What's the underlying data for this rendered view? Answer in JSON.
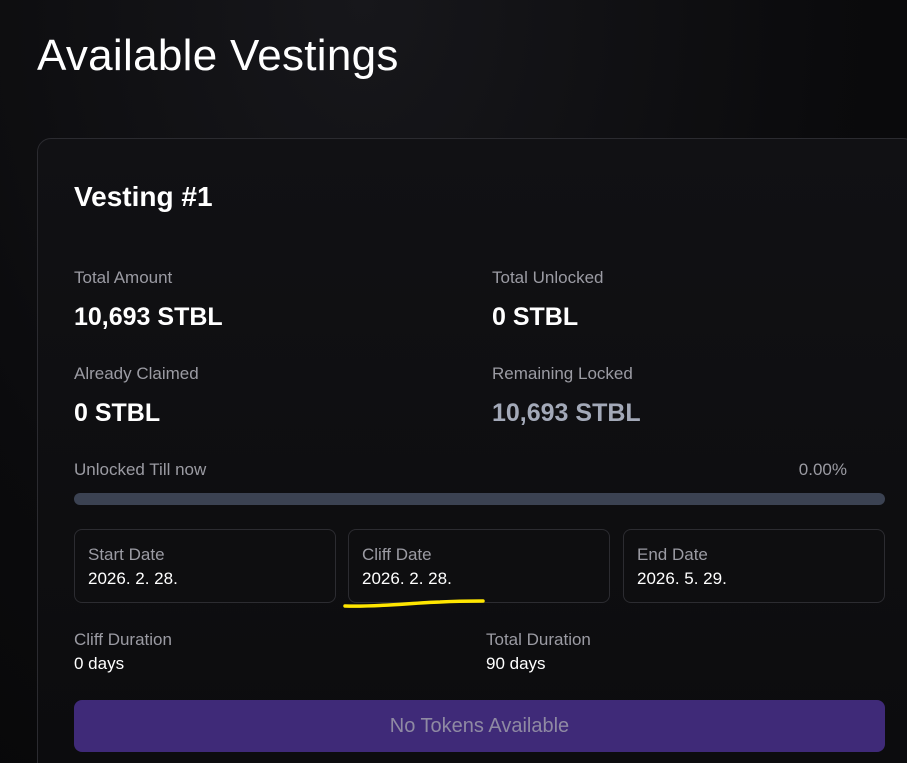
{
  "page": {
    "title": "Available Vestings"
  },
  "vesting": {
    "title": "Vesting #1",
    "total_amount": {
      "label": "Total Amount",
      "value": "10,693 STBL"
    },
    "total_unlocked": {
      "label": "Total Unlocked",
      "value": "0 STBL"
    },
    "already_claimed": {
      "label": "Already Claimed",
      "value": "0 STBL"
    },
    "remaining_locked": {
      "label": "Remaining Locked",
      "value": "10,693 STBL"
    },
    "progress": {
      "label": "Unlocked Till now",
      "percent_text": "0.00%",
      "fraction": 0.0
    },
    "dates": [
      {
        "label": "Start Date",
        "value": "2026. 2. 28."
      },
      {
        "label": "Cliff Date",
        "value": "2026. 2. 28."
      },
      {
        "label": "End Date",
        "value": "2026. 5. 29."
      }
    ],
    "cliff_duration": {
      "label": "Cliff Duration",
      "value": "0 days"
    },
    "total_duration": {
      "label": "Total Duration",
      "value": "90 days"
    },
    "claim_button_label": "No Tokens Available"
  },
  "colors": {
    "progress_track": "#3b4252",
    "button_disabled": "#3f2a78",
    "annotation_highlight": "#ffe600"
  }
}
